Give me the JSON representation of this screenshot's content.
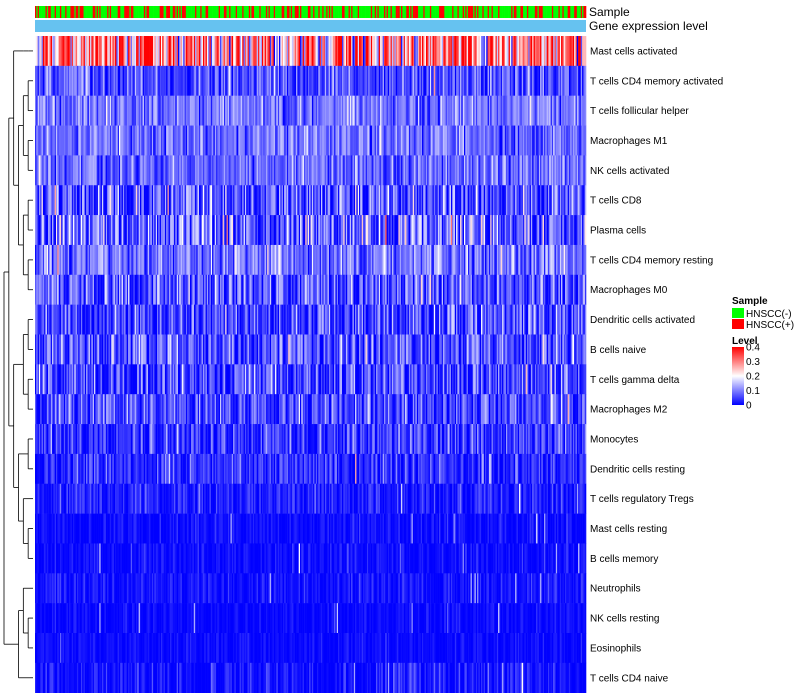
{
  "chart_data": {
    "type": "heatmap",
    "title": "",
    "annotation_tracks": [
      {
        "label": "Sample"
      },
      {
        "label": "Gene expression level"
      }
    ],
    "rows": [
      {
        "label": "Mast cells activated",
        "mean": 0.28,
        "spread": 0.13
      },
      {
        "label": "T cells CD4 memory activated",
        "mean": 0.06,
        "spread": 0.05
      },
      {
        "label": "T cells follicular helper",
        "mean": 0.09,
        "spread": 0.04
      },
      {
        "label": "Macrophages M1",
        "mean": 0.08,
        "spread": 0.04
      },
      {
        "label": "NK cells activated",
        "mean": 0.08,
        "spread": 0.04
      },
      {
        "label": "T cells CD8",
        "mean": 0.06,
        "spread": 0.07
      },
      {
        "label": "Plasma cells",
        "mean": 0.07,
        "spread": 0.09
      },
      {
        "label": "T cells CD4 memory resting",
        "mean": 0.09,
        "spread": 0.05
      },
      {
        "label": "Macrophages M0",
        "mean": 0.06,
        "spread": 0.06
      },
      {
        "label": "Dendritic cells activated",
        "mean": 0.05,
        "spread": 0.06
      },
      {
        "label": "B cells naive",
        "mean": 0.06,
        "spread": 0.06
      },
      {
        "label": "T cells gamma delta",
        "mean": 0.05,
        "spread": 0.06
      },
      {
        "label": "Macrophages M2",
        "mean": 0.05,
        "spread": 0.05
      },
      {
        "label": "Monocytes",
        "mean": 0.04,
        "spread": 0.05
      },
      {
        "label": "Dendritic cells resting",
        "mean": 0.03,
        "spread": 0.04
      },
      {
        "label": "T cells regulatory  Tregs",
        "mean": 0.02,
        "spread": 0.03
      },
      {
        "label": "Mast cells resting",
        "mean": 0.005,
        "spread": 0.02
      },
      {
        "label": "B cells memory",
        "mean": 0.005,
        "spread": 0.02
      },
      {
        "label": "Neutrophils",
        "mean": 0.01,
        "spread": 0.025
      },
      {
        "label": "NK cells resting",
        "mean": 0.005,
        "spread": 0.015
      },
      {
        "label": "Eosinophils",
        "mean": 0.005,
        "spread": 0.015
      },
      {
        "label": "T cells CD4 naive",
        "mean": 0.01,
        "spread": 0.03
      }
    ],
    "n_samples": 420,
    "color_scale": {
      "min": 0,
      "max": 0.4,
      "colors": [
        "#0000ff",
        "#ffffff",
        "#ff0000"
      ],
      "mid": 0.2
    },
    "legend": {
      "sample": {
        "title": "Sample",
        "entries": [
          {
            "label": "HNSCC(-)",
            "color": "#00ff00"
          },
          {
            "label": "HNSCC(+)",
            "color": "#ff0000"
          }
        ]
      },
      "level": {
        "title": "Level",
        "ticks": [
          {
            "label": "0.4",
            "value": 0.4
          },
          {
            "label": "0.3",
            "value": 0.3
          },
          {
            "label": "0.2",
            "value": 0.2
          },
          {
            "label": "0.1",
            "value": 0.1
          },
          {
            "label": "0",
            "value": 0
          }
        ]
      }
    },
    "sample_share_positive": 0.3,
    "expression_track_color": "#66c2f0",
    "row_dendrogram": true
  }
}
